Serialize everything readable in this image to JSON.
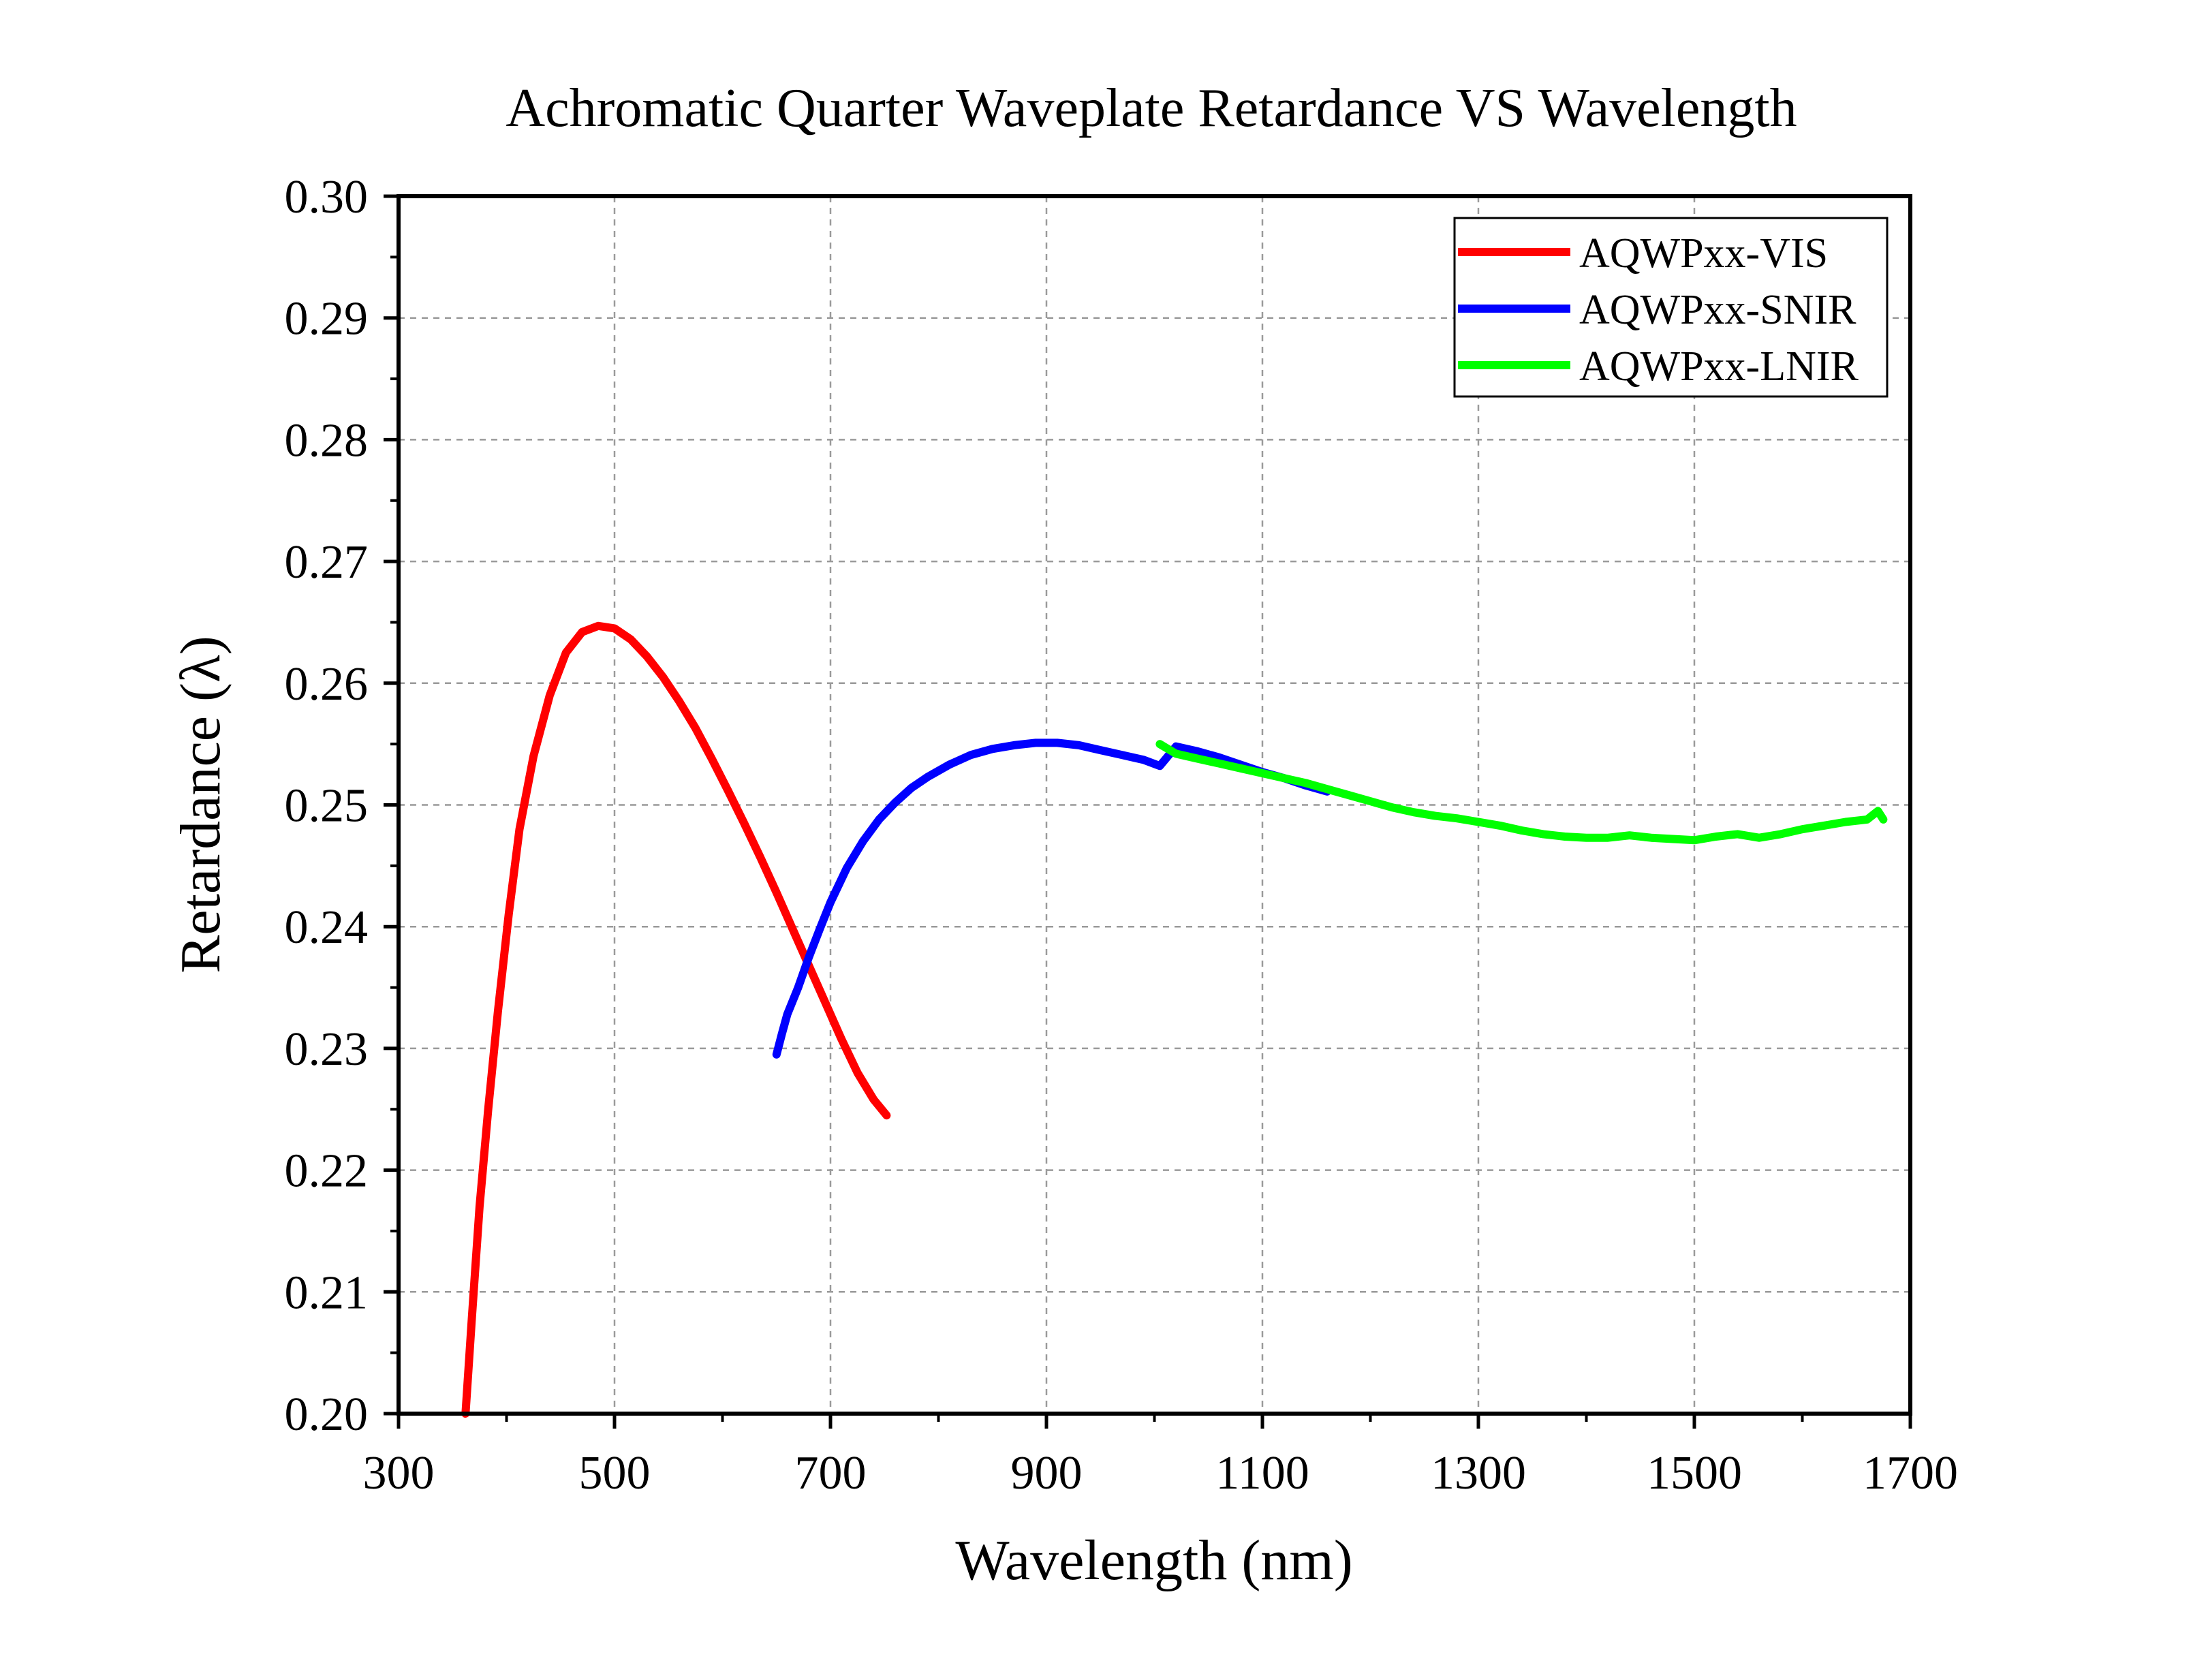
{
  "chart_data": {
    "type": "line",
    "title": "Achromatic Quarter Waveplate Retardance VS Wavelength",
    "xlabel": "Wavelength (nm)",
    "ylabel": "Retardance (λ)",
    "xlim": [
      300,
      1700
    ],
    "ylim": [
      0.2,
      0.3
    ],
    "xticks": [
      300,
      500,
      700,
      900,
      1100,
      1300,
      1500,
      1700
    ],
    "xtick_labels": [
      "300",
      "500",
      "700",
      "900",
      "1100",
      "1300",
      "1500",
      "1700"
    ],
    "yticks": [
      0.2,
      0.21,
      0.22,
      0.23,
      0.24,
      0.25,
      0.26,
      0.27,
      0.28,
      0.29,
      0.3
    ],
    "ytick_labels": [
      "0.20",
      "0.21",
      "0.22",
      "0.23",
      "0.24",
      "0.25",
      "0.26",
      "0.27",
      "0.28",
      "0.29",
      "0.30"
    ],
    "grid": true,
    "legend_position": "top-right",
    "series": [
      {
        "name": "AQWPxx-VIS",
        "color": "#ff0000",
        "x": [
          362,
          368,
          375,
          383,
          392,
          402,
          412,
          425,
          440,
          455,
          470,
          485,
          500,
          515,
          530,
          545,
          560,
          575,
          590,
          605,
          620,
          635,
          650,
          665,
          680,
          695,
          710,
          725,
          740,
          752
        ],
        "y": [
          0.2,
          0.208,
          0.217,
          0.225,
          0.233,
          0.241,
          0.248,
          0.254,
          0.259,
          0.2625,
          0.2642,
          0.2647,
          0.2645,
          0.2636,
          0.2622,
          0.2605,
          0.2585,
          0.2563,
          0.2538,
          0.2512,
          0.2485,
          0.2457,
          0.2428,
          0.2398,
          0.2368,
          0.2338,
          0.2308,
          0.228,
          0.2258,
          0.2245
        ]
      },
      {
        "name": "AQWPxx-SNIR",
        "color": "#0000ff",
        "x": [
          650,
          655,
          660,
          670,
          680,
          690,
          700,
          715,
          730,
          745,
          760,
          775,
          790,
          810,
          830,
          850,
          870,
          890,
          910,
          930,
          950,
          970,
          990,
          1005,
          1020,
          1040,
          1060,
          1080,
          1100,
          1120,
          1140,
          1160
        ],
        "y": [
          0.2295,
          0.2312,
          0.2328,
          0.235,
          0.2375,
          0.2398,
          0.242,
          0.2448,
          0.247,
          0.2488,
          0.2502,
          0.2514,
          0.2523,
          0.2533,
          0.2541,
          0.2546,
          0.2549,
          0.2551,
          0.2551,
          0.2549,
          0.2545,
          0.2541,
          0.2537,
          0.2532,
          0.2548,
          0.2544,
          0.2539,
          0.2533,
          0.2527,
          0.2522,
          0.2516,
          0.2511
        ]
      },
      {
        "name": "AQWPxx-LNIR",
        "color": "#00ff00",
        "x": [
          1005,
          1020,
          1040,
          1060,
          1080,
          1100,
          1120,
          1140,
          1160,
          1180,
          1200,
          1220,
          1240,
          1260,
          1280,
          1300,
          1320,
          1340,
          1360,
          1380,
          1400,
          1420,
          1440,
          1460,
          1480,
          1500,
          1520,
          1540,
          1560,
          1580,
          1600,
          1620,
          1640,
          1660,
          1670,
          1675
        ],
        "y": [
          0.255,
          0.2542,
          0.2538,
          0.2534,
          0.253,
          0.2526,
          0.2522,
          0.2518,
          0.2513,
          0.2508,
          0.2503,
          0.2498,
          0.2494,
          0.2491,
          0.2489,
          0.2486,
          0.2483,
          0.2479,
          0.2476,
          0.2474,
          0.2473,
          0.2473,
          0.2475,
          0.2473,
          0.2472,
          0.2471,
          0.2474,
          0.2476,
          0.2473,
          0.2476,
          0.248,
          0.2483,
          0.2486,
          0.2488,
          0.2495,
          0.2488
        ]
      }
    ]
  }
}
